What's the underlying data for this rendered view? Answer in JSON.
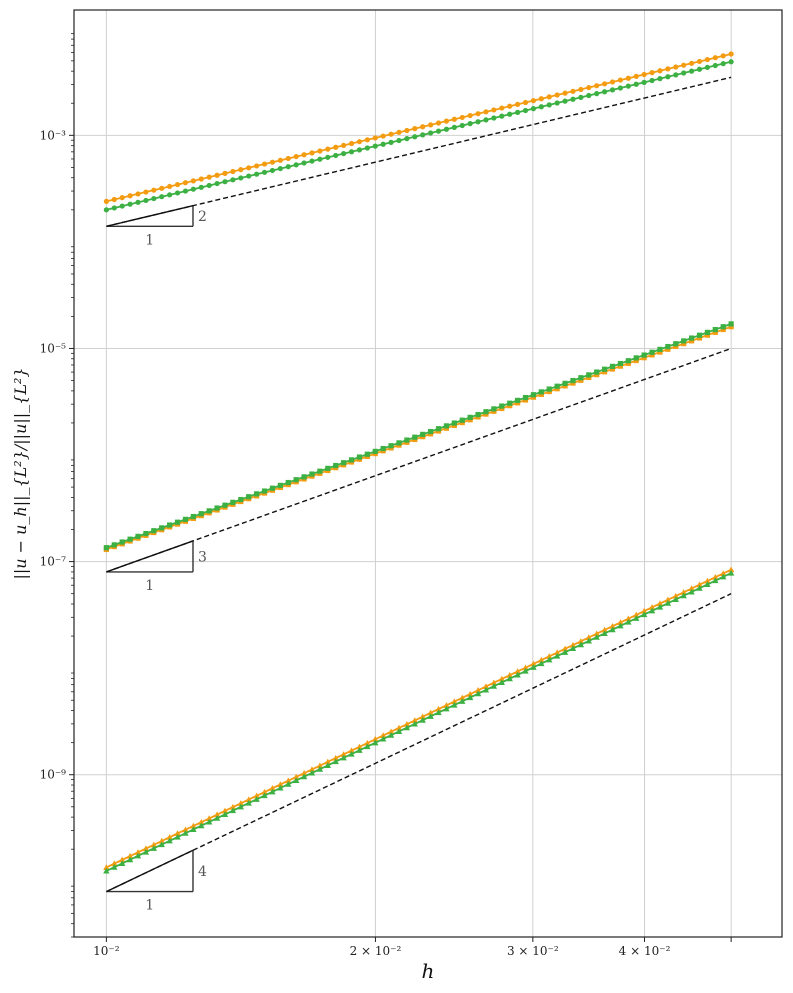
{
  "chart_data": {
    "type": "line",
    "title": "",
    "xlabel": "h",
    "ylabel": "||u − u_h||_{L²}/||u||_{L²}",
    "x_scale": "log",
    "y_scale": "log",
    "xlim": [
      0.0092,
      0.057
    ],
    "ylim": [
      3e-11,
      0.015
    ],
    "grid": true,
    "legend": "none",
    "x_ticks": [
      {
        "value": 0.01,
        "label": "10⁻²"
      },
      {
        "value": 0.02,
        "label": "2 × 10⁻²"
      },
      {
        "value": 0.03,
        "label": "3 × 10⁻²"
      },
      {
        "value": 0.04,
        "label": "4 × 10⁻²"
      },
      {
        "value": 0.05,
        "label": ""
      }
    ],
    "y_ticks": [
      {
        "value": 0.001,
        "label": "10⁻³"
      },
      {
        "value": 1e-05,
        "label": "10⁻⁵"
      },
      {
        "value": 1e-07,
        "label": "10⁻⁷"
      },
      {
        "value": 1e-09,
        "label": "10⁻⁹"
      }
    ],
    "colors": {
      "orange": "#f39c12",
      "green": "#3cb043",
      "ref": "#111111",
      "triangle": "#333333"
    },
    "groups": [
      {
        "order": 2,
        "marker": "circle",
        "x_range": [
          0.01,
          0.05
        ],
        "points": 80,
        "series": [
          {
            "color": "orange",
            "y_start": 0.00024,
            "y_end": 0.0058
          },
          {
            "color": "green",
            "y_start": 0.0002,
            "y_end": 0.0049
          }
        ],
        "reference": {
          "y_start": 0.00014,
          "y_end": 0.0035
        },
        "triangle": {
          "x0": 0.01,
          "x1": 0.0125,
          "y0": 0.00014,
          "run_label": "1",
          "rise_label": "2"
        }
      },
      {
        "order": 3,
        "marker": "square",
        "x_range": [
          0.01,
          0.05
        ],
        "points": 80,
        "series": [
          {
            "color": "orange",
            "y_start": 1.3e-07,
            "y_end": 1.6e-05
          },
          {
            "color": "green",
            "y_start": 1.35e-07,
            "y_end": 1.7e-05
          }
        ],
        "reference": {
          "y_start": 8e-08,
          "y_end": 1e-05
        },
        "triangle": {
          "x0": 0.01,
          "x1": 0.0125,
          "y0": 8e-08,
          "run_label": "1",
          "rise_label": "3"
        }
      },
      {
        "order": 4,
        "marker": "triangle",
        "x_range": [
          0.01,
          0.05
        ],
        "points": 80,
        "series": [
          {
            "color": "orange",
            "y_start": 1.35e-10,
            "y_end": 8.4e-08
          },
          {
            "color": "green",
            "y_start": 1.25e-10,
            "y_end": 7.8e-08
          }
        ],
        "reference": {
          "y_start": 8e-11,
          "y_end": 5e-08
        },
        "triangle": {
          "x0": 0.01,
          "x1": 0.0125,
          "y0": 8e-11,
          "run_label": "1",
          "rise_label": "4"
        }
      }
    ]
  }
}
